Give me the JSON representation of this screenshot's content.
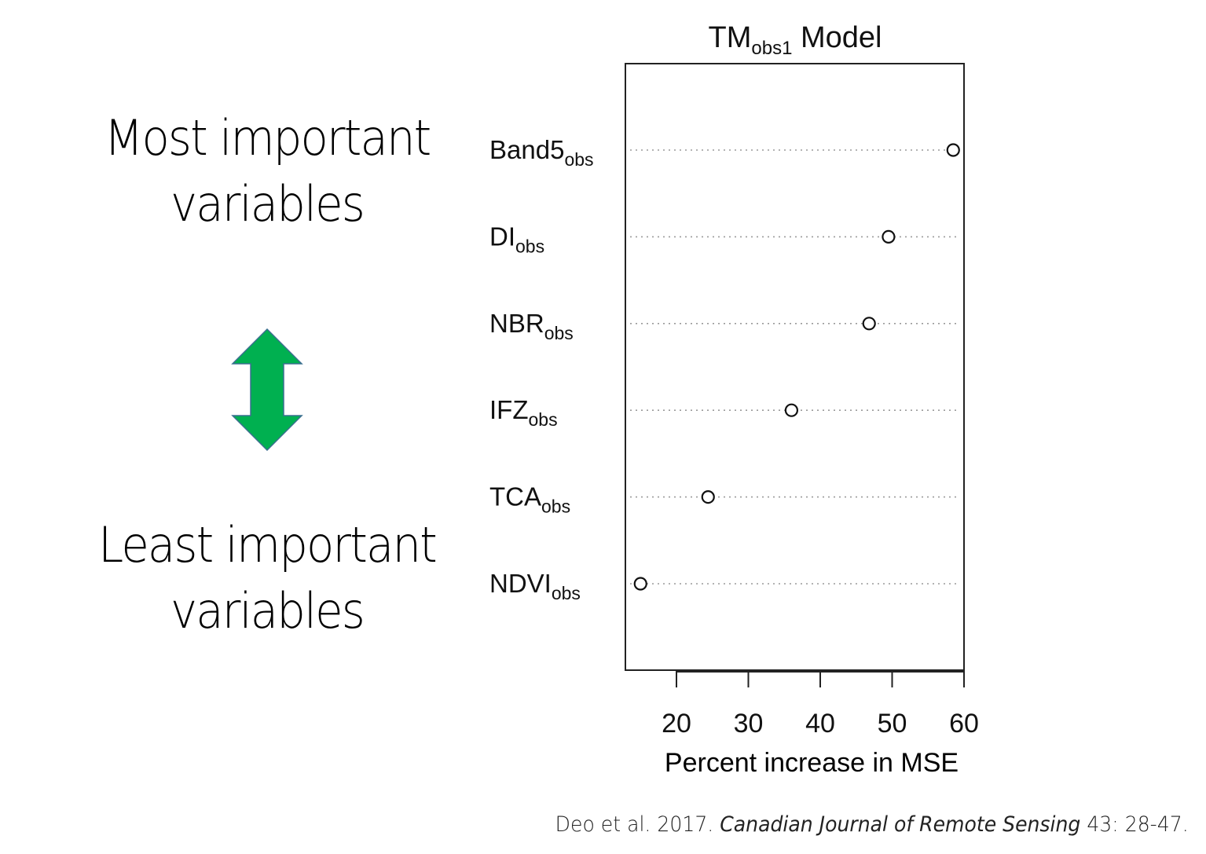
{
  "left_panel": {
    "top_label_line1": "Most important",
    "top_label_line2": "variables",
    "bottom_label_line1": "Least important",
    "bottom_label_line2": "variables",
    "arrow_color": "#00b050",
    "arrow_icon": "double-headed-vertical-arrow"
  },
  "chart_data": {
    "type": "scatter",
    "title": "TM",
    "title_subscript": "obs1",
    "title_suffix": " Model",
    "xlabel": "Percent increase in MSE",
    "ylabel": "",
    "xlim": [
      13,
      60
    ],
    "xticks": [
      20,
      30,
      40,
      50,
      60
    ],
    "grid": "dotted horizontal",
    "categories": [
      {
        "name": "Band5",
        "sub": "obs",
        "value": 58.5
      },
      {
        "name": "DI",
        "sub": "obs",
        "value": 49.5
      },
      {
        "name": "NBR",
        "sub": "obs",
        "value": 46.8
      },
      {
        "name": "IFZ",
        "sub": "obs",
        "value": 36.0
      },
      {
        "name": "TCA",
        "sub": "obs",
        "value": 24.4
      },
      {
        "name": "NDVI",
        "sub": "obs",
        "value": 15.0
      }
    ]
  },
  "citation": {
    "authors": "Deo et al. 2017. ",
    "journal": "Canadian Journal of Remote Sensing",
    "pages": " 43: 28-47."
  }
}
